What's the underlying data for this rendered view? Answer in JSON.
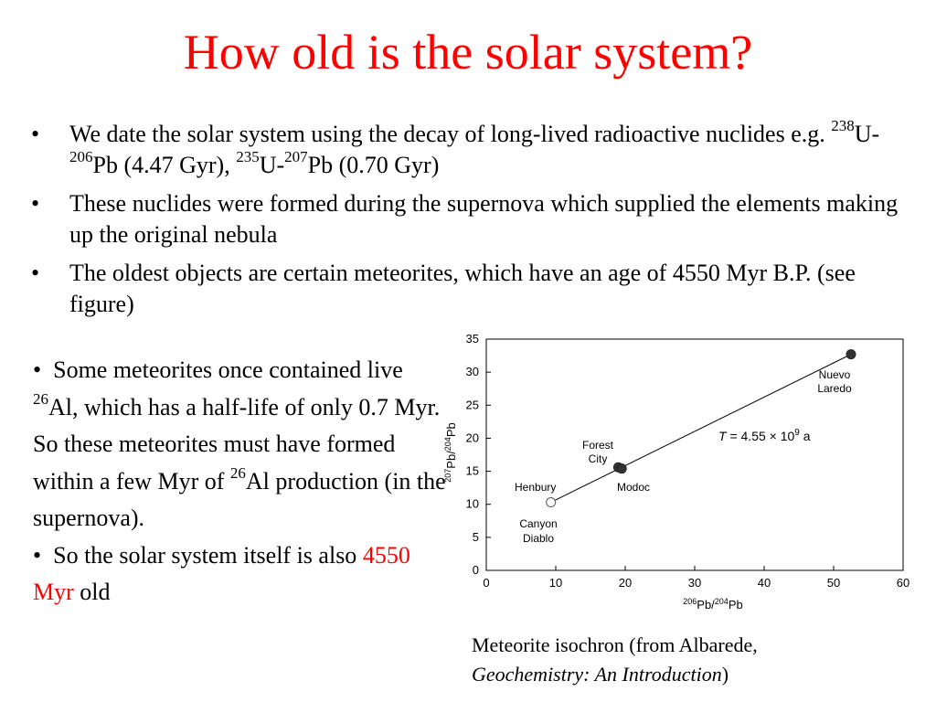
{
  "title": "How old is the solar system?",
  "bullets": [
    {
      "text_a": "We date the solar system using the decay of long-lived radioactive nuclides e.g. ",
      "sup1": "238",
      "t1": "U-",
      "sup2": "206",
      "t2": "Pb (4.47 Gyr), ",
      "sup3": "235",
      "t3": "U-",
      "sup4": "207",
      "t4": "Pb (0.70 Gyr)"
    },
    {
      "text": "These nuclides were formed during the supernova which supplied the elements making up the original nebula"
    },
    {
      "text": "The oldest objects are certain meteorites, which have an age of 4550 Myr B.P. (see figure)"
    }
  ],
  "bullet_symbol": "•",
  "lower": {
    "p1_a": "Some meteorites once contained live ",
    "p1_sup": "26",
    "p1_b": "Al, which has a half-life of only 0.7 Myr. So these meteorites must have formed within a few Myr of ",
    "p1_sup2": "26",
    "p1_c": "Al production (in the supernova).",
    "p2_a": "So the solar system itself is also ",
    "p2_red": "4550 Myr",
    "p2_b": " old"
  },
  "caption": {
    "line1": "Meteorite isochron (from Albarede,",
    "italic": "Geochemistry: An Introduction",
    "close": ")"
  },
  "colors": {
    "title": "#ff0000",
    "highlight": "#ff0000"
  },
  "chart_data": {
    "type": "scatter",
    "xlabel_parts": {
      "sup_a": "206",
      "base_a": "Pb/",
      "sup_b": "204",
      "base_b": "Pb"
    },
    "ylabel_parts": {
      "sup_a": "207",
      "base_a": "Pb/",
      "sup_b": "204",
      "base_b": "Pb"
    },
    "xlim": [
      0,
      60
    ],
    "ylim": [
      0,
      35
    ],
    "xticks": [
      0,
      10,
      20,
      30,
      40,
      50,
      60
    ],
    "yticks": [
      0,
      5,
      10,
      15,
      20,
      25,
      30,
      35
    ],
    "points": [
      {
        "x": 9.3,
        "y": 10.3,
        "filled": false,
        "label": "Canyon Diablo"
      },
      {
        "x": 19.0,
        "y": 15.6,
        "filled": true,
        "label": "Forest City"
      },
      {
        "x": 19.5,
        "y": 15.4,
        "filled": true,
        "label": "Modoc"
      },
      {
        "x": 52.5,
        "y": 32.7,
        "filled": true,
        "label": "Nuevo Laredo"
      }
    ],
    "extra_labels": [
      "Henbury"
    ],
    "isochron": {
      "x": [
        9.3,
        52.5
      ],
      "y": [
        10.3,
        32.7
      ]
    },
    "annotation": {
      "italic": "T",
      "text": " = 4.55 × 10",
      "sup": "9",
      "tail": " a"
    }
  }
}
